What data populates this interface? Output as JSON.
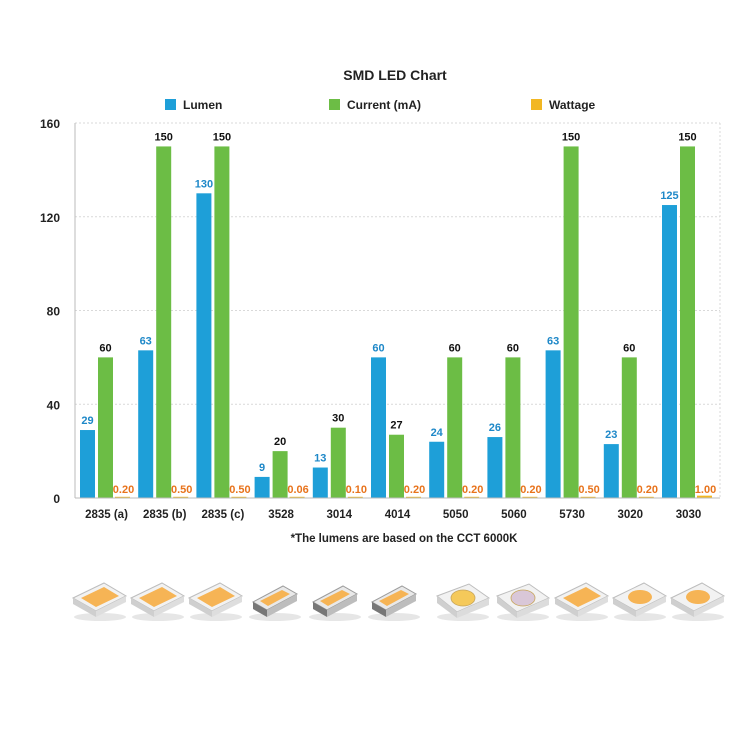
{
  "chart_data": {
    "type": "bar",
    "title": "SMD LED Chart",
    "note": "*The lumens are based on the CCT 6000K",
    "categories": [
      "2835 (a)",
      "2835 (b)",
      "2835 (c)",
      "3528",
      "3014",
      "4014",
      "5050",
      "5060",
      "5730",
      "3020",
      "3030"
    ],
    "series": [
      {
        "name": "Lumen",
        "color": "#1e9fd8",
        "label_color": "#1e88c8",
        "values": [
          29,
          63,
          130,
          9,
          13,
          60,
          24,
          26,
          63,
          23,
          125
        ],
        "labels": [
          "29",
          "63",
          "130",
          "9",
          "13",
          "60",
          "24",
          "26",
          "63",
          "23",
          "125"
        ]
      },
      {
        "name": "Current (mA)",
        "color": "#6cbd45",
        "label_color": "#111111",
        "values": [
          60,
          150,
          150,
          20,
          30,
          27,
          60,
          60,
          150,
          60,
          150
        ],
        "labels": [
          "60",
          "150",
          "150",
          "20",
          "30",
          "27",
          "60",
          "60",
          "150",
          "60",
          "150"
        ]
      },
      {
        "name": "Wattage",
        "color": "#f2b722",
        "label_color": "#e8731c",
        "values": [
          0.2,
          0.5,
          0.5,
          0.06,
          0.1,
          0.2,
          0.2,
          0.2,
          0.5,
          0.2,
          1.0
        ],
        "labels": [
          "0.20",
          "0.50",
          "0.50",
          "0.06",
          "0.10",
          "0.20",
          "0.20",
          "0.20",
          "0.50",
          "0.20",
          "1.00"
        ]
      }
    ],
    "yticks": [
      0,
      40,
      80,
      120,
      160
    ],
    "ylim": [
      0,
      160
    ],
    "grid": true,
    "legend": "top"
  },
  "package_images": [
    "2835 (a)",
    "2835 (b)",
    "2835 (c)",
    "3528",
    "3014",
    "4014",
    "5050",
    "5060",
    "5730",
    "3020",
    "3030"
  ],
  "colors": {
    "chip_body": "#f2f2f2",
    "phosphor": "#f6b455",
    "grid": "#d9d9d9"
  }
}
